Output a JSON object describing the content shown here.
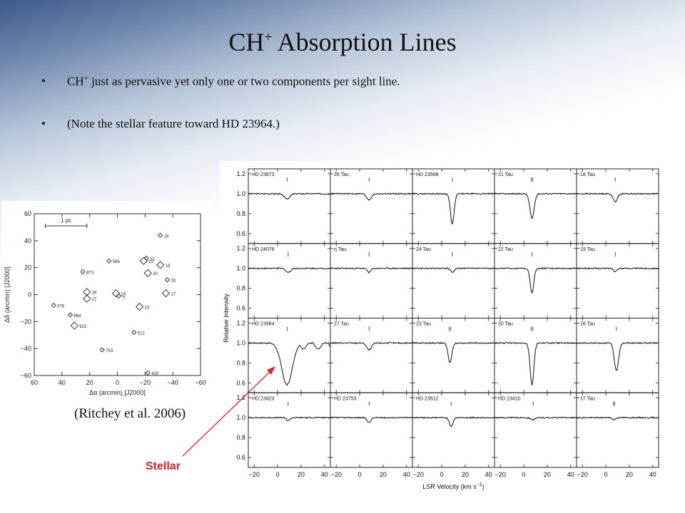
{
  "slide": {
    "title_main": "CH",
    "title_sup": "+",
    "title_rest": "Absorption Lines",
    "bullets": [
      {
        "pre": "CH",
        "sup": "+",
        "text": "just as pervasive yet only one or two components per sight line."
      },
      {
        "pre": "",
        "sup": "",
        "text": "(Note the stellar feature toward HD 23964.)"
      }
    ],
    "bullet_glyph": "•",
    "citation": "(Ritchey et al. 2006)",
    "stellar_label": "Stellar",
    "arrow_color": "#d2282e"
  },
  "chart_data": [
    {
      "type": "scatter",
      "xlabel": "Δα (arcmin) [J2000]",
      "ylabel": "Δδ (arcmin) [J2000]",
      "xlim": [
        60,
        -60
      ],
      "ylim": [
        -60,
        60
      ],
      "xticks": [
        60,
        40,
        20,
        0,
        -20,
        -40,
        -60
      ],
      "yticks": [
        -60,
        -40,
        -20,
        0,
        20,
        40,
        60
      ],
      "scale_bar": {
        "label": "1 pc",
        "x_from": 52,
        "x_to": 22,
        "y": 51
      },
      "points": [
        {
          "label": "18",
          "x": -31,
          "y": 44,
          "big": false
        },
        {
          "label": "566",
          "x": 6,
          "y": 25,
          "big": false
        },
        {
          "label": "21",
          "x": -21,
          "y": 27,
          "big": false
        },
        {
          "label": "22",
          "x": -19,
          "y": 25,
          "big": true
        },
        {
          "label": "19",
          "x": -31,
          "y": 22,
          "big": true
        },
        {
          "label": "873",
          "x": 25,
          "y": 17,
          "big": false
        },
        {
          "label": "20",
          "x": -22,
          "y": 16,
          "big": true
        },
        {
          "label": "16",
          "x": -36,
          "y": 11,
          "big": false
        },
        {
          "label": "28",
          "x": 22,
          "y": 2,
          "big": true
        },
        {
          "label": "24",
          "x": 1,
          "y": 1,
          "big": true
        },
        {
          "label": "η",
          "x": -1,
          "y": -1,
          "big": false
        },
        {
          "label": "17",
          "x": -35,
          "y": 1,
          "big": true
        },
        {
          "label": "27",
          "x": 22,
          "y": -3,
          "big": true
        },
        {
          "label": "076",
          "x": 46,
          "y": -8,
          "big": false
        },
        {
          "label": "23",
          "x": -16,
          "y": -9,
          "big": true
        },
        {
          "label": "964",
          "x": 34,
          "y": -15,
          "big": false
        },
        {
          "label": "923",
          "x": 31,
          "y": -23,
          "big": true
        },
        {
          "label": "512",
          "x": -12,
          "y": -28,
          "big": false
        },
        {
          "label": "753",
          "x": 11,
          "y": -41,
          "big": false
        },
        {
          "label": "410",
          "x": -22,
          "y": -58,
          "big": false
        }
      ]
    },
    {
      "type": "line",
      "xlabel": "LSR Velocity (km s",
      "xlabel_sup": "−1",
      "xlabel_end": ")",
      "ylabel": "Relative Intensity",
      "xlim": [
        -25,
        45
      ],
      "ylim": [
        0.5,
        1.25
      ],
      "xticks": [
        -20,
        0,
        20,
        40
      ],
      "yticks": [
        0.6,
        0.8,
        1.0,
        1.2
      ],
      "ytick_labels": [
        "0.6",
        "0.8",
        "1.0",
        "1.2"
      ],
      "panels": [
        [
          {
            "name": "HD 23873",
            "comps": [
              8
            ],
            "ticks": "I",
            "lines": [
              [
                8,
                0.05,
                2.5
              ]
            ]
          },
          {
            "name": "28 Tau",
            "comps": [
              8
            ],
            "ticks": "I",
            "lines": [
              [
                8,
                0.06,
                2.0
              ]
            ]
          },
          {
            "name": "HD 23568",
            "comps": [
              9
            ],
            "ticks": "I",
            "lines": [
              [
                9,
                0.3,
                1.6
              ]
            ]
          },
          {
            "name": "21 Tau",
            "comps": [
              7
            ],
            "ticks": "II",
            "lines": [
              [
                7,
                0.25,
                1.8
              ]
            ]
          },
          {
            "name": "18 Tau",
            "comps": [
              8
            ],
            "ticks": "I",
            "lines": [
              [
                8,
                0.08,
                1.8
              ]
            ]
          }
        ],
        [
          {
            "name": "HD 24076",
            "comps": [
              9
            ],
            "ticks": "I",
            "lines": [
              [
                9,
                0.04,
                2.0
              ]
            ]
          },
          {
            "name": "η Tau",
            "comps": [
              8
            ],
            "ticks": "I",
            "lines": [
              [
                8,
                0.04,
                1.5
              ]
            ]
          },
          {
            "name": "24 Tau",
            "comps": [
              9
            ],
            "ticks": "I",
            "lines": [
              [
                9,
                0.04,
                1.5
              ]
            ]
          },
          {
            "name": "22 Tau",
            "comps": [
              7
            ],
            "ticks": "I",
            "lines": [
              [
                7,
                0.25,
                1.5
              ]
            ]
          },
          {
            "name": "19 Tau",
            "comps": [
              8
            ],
            "ticks": "I",
            "lines": [
              [
                8,
                0.03,
                1.5
              ]
            ]
          }
        ],
        [
          {
            "name": "HD 23964",
            "comps": [
              8
            ],
            "ticks": "I",
            "lines": [
              [
                8,
                0.42,
                4.5
              ]
            ],
            "stellar": true
          },
          {
            "name": "27 Tau",
            "comps": [
              8
            ],
            "ticks": "I",
            "lines": [
              [
                8,
                0.07,
                2.0
              ]
            ]
          },
          {
            "name": "23 Tau",
            "comps": [
              7
            ],
            "ticks": "II",
            "lines": [
              [
                7,
                0.2,
                1.6
              ]
            ]
          },
          {
            "name": "20 Tau",
            "comps": [
              7
            ],
            "ticks": "II",
            "lines": [
              [
                7,
                0.42,
                1.6
              ]
            ]
          },
          {
            "name": "16 Tau",
            "comps": [
              9
            ],
            "ticks": "I",
            "lines": [
              [
                9,
                0.28,
                1.8
              ]
            ]
          }
        ],
        [
          {
            "name": "HD 23923",
            "comps": [
              9
            ],
            "ticks": "I",
            "lines": [
              [
                9,
                0.03,
                1.5
              ]
            ]
          },
          {
            "name": "HD 23753",
            "comps": [
              8
            ],
            "ticks": "I",
            "lines": [
              [
                8,
                0.05,
                1.5
              ]
            ]
          },
          {
            "name": "HD 23512",
            "comps": [
              8
            ],
            "ticks": "I",
            "lines": [
              [
                8,
                0.09,
                1.5
              ]
            ]
          },
          {
            "name": "HD 23410",
            "comps": [
              8
            ],
            "ticks": "I",
            "lines": [
              [
                8,
                0.02,
                2.0
              ]
            ]
          },
          {
            "name": "17 Tau",
            "comps": [
              7
            ],
            "ticks": "II",
            "lines": [
              [
                7,
                0.02,
                1.5
              ]
            ]
          }
        ]
      ]
    }
  ]
}
